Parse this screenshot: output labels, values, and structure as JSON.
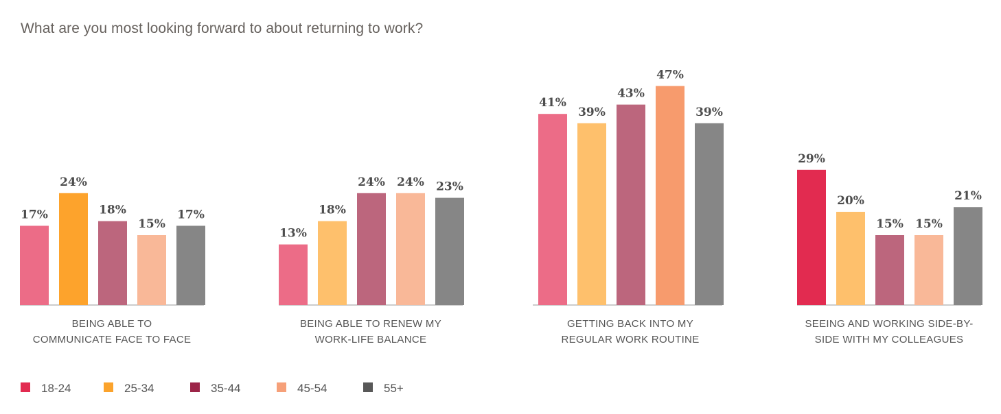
{
  "chart_data": {
    "type": "bar",
    "title": "What are you most looking forward to about returning to work?",
    "categories": [
      [
        "BEING ABLE TO",
        "COMMUNICATE FACE TO FACE"
      ],
      [
        "BEING ABLE TO RENEW MY",
        "WORK-LIFE BALANCE"
      ],
      [
        "GETTING BACK INTO MY",
        "REGULAR WORK ROUTINE"
      ],
      [
        "SEEING AND WORKING SIDE-BY-",
        "SIDE WITH MY COLLEAGUES"
      ]
    ],
    "series": [
      {
        "name": "18-24",
        "values": [
          17,
          13,
          41,
          29
        ],
        "value_labels": [
          "17%",
          "13%",
          "41%",
          "29%"
        ]
      },
      {
        "name": "25-34",
        "values": [
          24,
          18,
          39,
          20
        ],
        "value_labels": [
          "24%",
          "18%",
          "39%",
          "20%"
        ]
      },
      {
        "name": "35-44",
        "values": [
          18,
          24,
          43,
          15
        ],
        "value_labels": [
          "18%",
          "24%",
          "43%",
          "15%"
        ]
      },
      {
        "name": "45-54",
        "values": [
          15,
          24,
          47,
          15
        ],
        "value_labels": [
          "15%",
          "24%",
          "47%",
          "15%"
        ]
      },
      {
        "name": "55+",
        "values": [
          17,
          23,
          39,
          21
        ],
        "value_labels": [
          "17%",
          "23%",
          "39%",
          "21%"
        ]
      }
    ],
    "legend_colors": [
      "#e22b50",
      "#fba32c",
      "#9c2548",
      "#f6a079",
      "#585858"
    ],
    "bar_colors": [
      [
        "#ec6c87",
        "#fda32c",
        "#bc667d",
        "#f9b898",
        "#868686"
      ],
      [
        "#ec6c87",
        "#fec06c",
        "#bc667d",
        "#f9b898",
        "#868686"
      ],
      [
        "#ec6c87",
        "#fec06c",
        "#bc667d",
        "#f79b6d",
        "#868686"
      ],
      [
        "#e22b50",
        "#fec06c",
        "#bc667d",
        "#f9b898",
        "#868686"
      ]
    ],
    "legend_position": "bottom-left",
    "ylim": [
      0,
      50
    ],
    "grid": false
  }
}
